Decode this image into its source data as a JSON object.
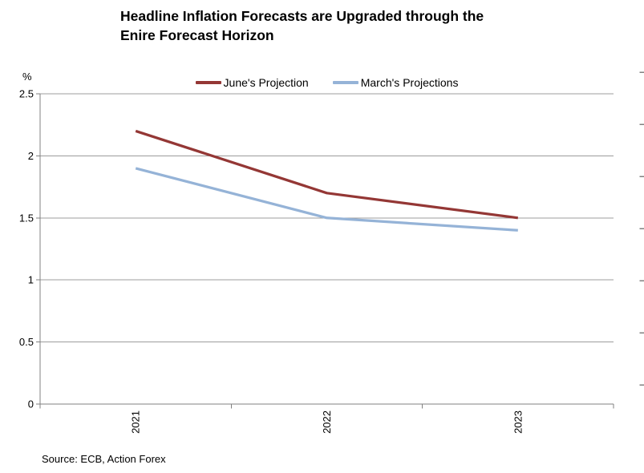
{
  "title": {
    "lines": [
      "Headline Inflation Forecasts are Upgraded through the",
      "Enire Forecast Horizon"
    ]
  },
  "source": "Source: ECB, Action Forex",
  "chart_data": {
    "type": "line",
    "categories": [
      "2021",
      "2022",
      "2023"
    ],
    "series": [
      {
        "name": "June's Projection",
        "color": "#943735",
        "values": [
          2.2,
          1.7,
          1.5
        ]
      },
      {
        "name": "March's Projections",
        "color": "#95B3D7",
        "values": [
          1.9,
          1.5,
          1.4
        ]
      }
    ],
    "ylabel": "%",
    "xlabel": "",
    "ylim": [
      0,
      2.5
    ],
    "ytick_step": 0.5,
    "yticks": [
      "0",
      "0.5",
      "1",
      "1.5",
      "2",
      "2.5"
    ],
    "grid": "horizontal",
    "legend_position": "top-center",
    "x_labels_rotated_degrees": -90,
    "colors": {
      "gridline": "#9C9C9C",
      "axis": "#808080"
    }
  }
}
